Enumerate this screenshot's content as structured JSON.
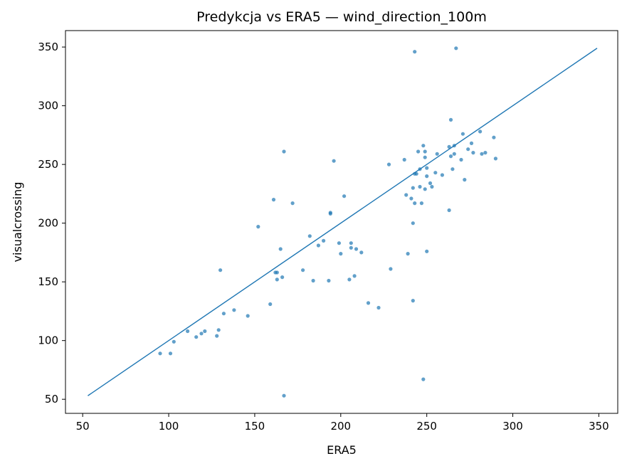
{
  "chart_data": {
    "type": "scatter",
    "title": "Predykcja vs ERA5 — wind_direction_100m",
    "xlabel": "ERA5",
    "ylabel": "visualcrossing",
    "xlim": [
      40,
      361
    ],
    "ylim": [
      38,
      364
    ],
    "xticks": [
      50,
      100,
      150,
      200,
      250,
      300,
      350
    ],
    "yticks": [
      50,
      100,
      150,
      200,
      250,
      300,
      350
    ],
    "xtick_labels": [
      "50",
      "100",
      "150",
      "200",
      "250",
      "300",
      "350"
    ],
    "ytick_labels": [
      "50",
      "100",
      "150",
      "200",
      "250",
      "300",
      "350"
    ],
    "grid": false,
    "point_color": "#1f77b4",
    "line_color": "#1f77b4",
    "reference_line": {
      "x": [
        53,
        349
      ],
      "y": [
        53,
        349
      ]
    },
    "points": [
      [
        95,
        89
      ],
      [
        101,
        89
      ],
      [
        103,
        99
      ],
      [
        111,
        108
      ],
      [
        116,
        103
      ],
      [
        119,
        106
      ],
      [
        121,
        108
      ],
      [
        128,
        104
      ],
      [
        129,
        109
      ],
      [
        130,
        160
      ],
      [
        132,
        123
      ],
      [
        138,
        126
      ],
      [
        146,
        121
      ],
      [
        152,
        197
      ],
      [
        159,
        131
      ],
      [
        161,
        220
      ],
      [
        162,
        158
      ],
      [
        163,
        152
      ],
      [
        163,
        158
      ],
      [
        165,
        178
      ],
      [
        166,
        154
      ],
      [
        167,
        261
      ],
      [
        167,
        53
      ],
      [
        172,
        217
      ],
      [
        178,
        160
      ],
      [
        182,
        189
      ],
      [
        184,
        151
      ],
      [
        187,
        181
      ],
      [
        190,
        185
      ],
      [
        193,
        151
      ],
      [
        194,
        208
      ],
      [
        194,
        209
      ],
      [
        196,
        253
      ],
      [
        199,
        183
      ],
      [
        200,
        174
      ],
      [
        202,
        223
      ],
      [
        205,
        152
      ],
      [
        206,
        179
      ],
      [
        206,
        183
      ],
      [
        208,
        155
      ],
      [
        209,
        178
      ],
      [
        212,
        175
      ],
      [
        216,
        132
      ],
      [
        222,
        128
      ],
      [
        228,
        250
      ],
      [
        229,
        161
      ],
      [
        237,
        254
      ],
      [
        238,
        224
      ],
      [
        239,
        174
      ],
      [
        241,
        221
      ],
      [
        242,
        134
      ],
      [
        242,
        200
      ],
      [
        242,
        230
      ],
      [
        243,
        217
      ],
      [
        243,
        242
      ],
      [
        243,
        346
      ],
      [
        244,
        242
      ],
      [
        245,
        261
      ],
      [
        246,
        231
      ],
      [
        246,
        246
      ],
      [
        247,
        217
      ],
      [
        248,
        266
      ],
      [
        248,
        67
      ],
      [
        249,
        256
      ],
      [
        249,
        261
      ],
      [
        249,
        229
      ],
      [
        250,
        247
      ],
      [
        250,
        176
      ],
      [
        250,
        240
      ],
      [
        252,
        234
      ],
      [
        253,
        231
      ],
      [
        255,
        243
      ],
      [
        256,
        259
      ],
      [
        259,
        241
      ],
      [
        263,
        265
      ],
      [
        263,
        211
      ],
      [
        264,
        257
      ],
      [
        264,
        288
      ],
      [
        265,
        246
      ],
      [
        266,
        259
      ],
      [
        266,
        266
      ],
      [
        267,
        349
      ],
      [
        270,
        254
      ],
      [
        271,
        276
      ],
      [
        272,
        237
      ],
      [
        274,
        263
      ],
      [
        276,
        268
      ],
      [
        277,
        260
      ],
      [
        281,
        278
      ],
      [
        282,
        259
      ],
      [
        284,
        260
      ],
      [
        289,
        273
      ],
      [
        290,
        255
      ]
    ]
  }
}
